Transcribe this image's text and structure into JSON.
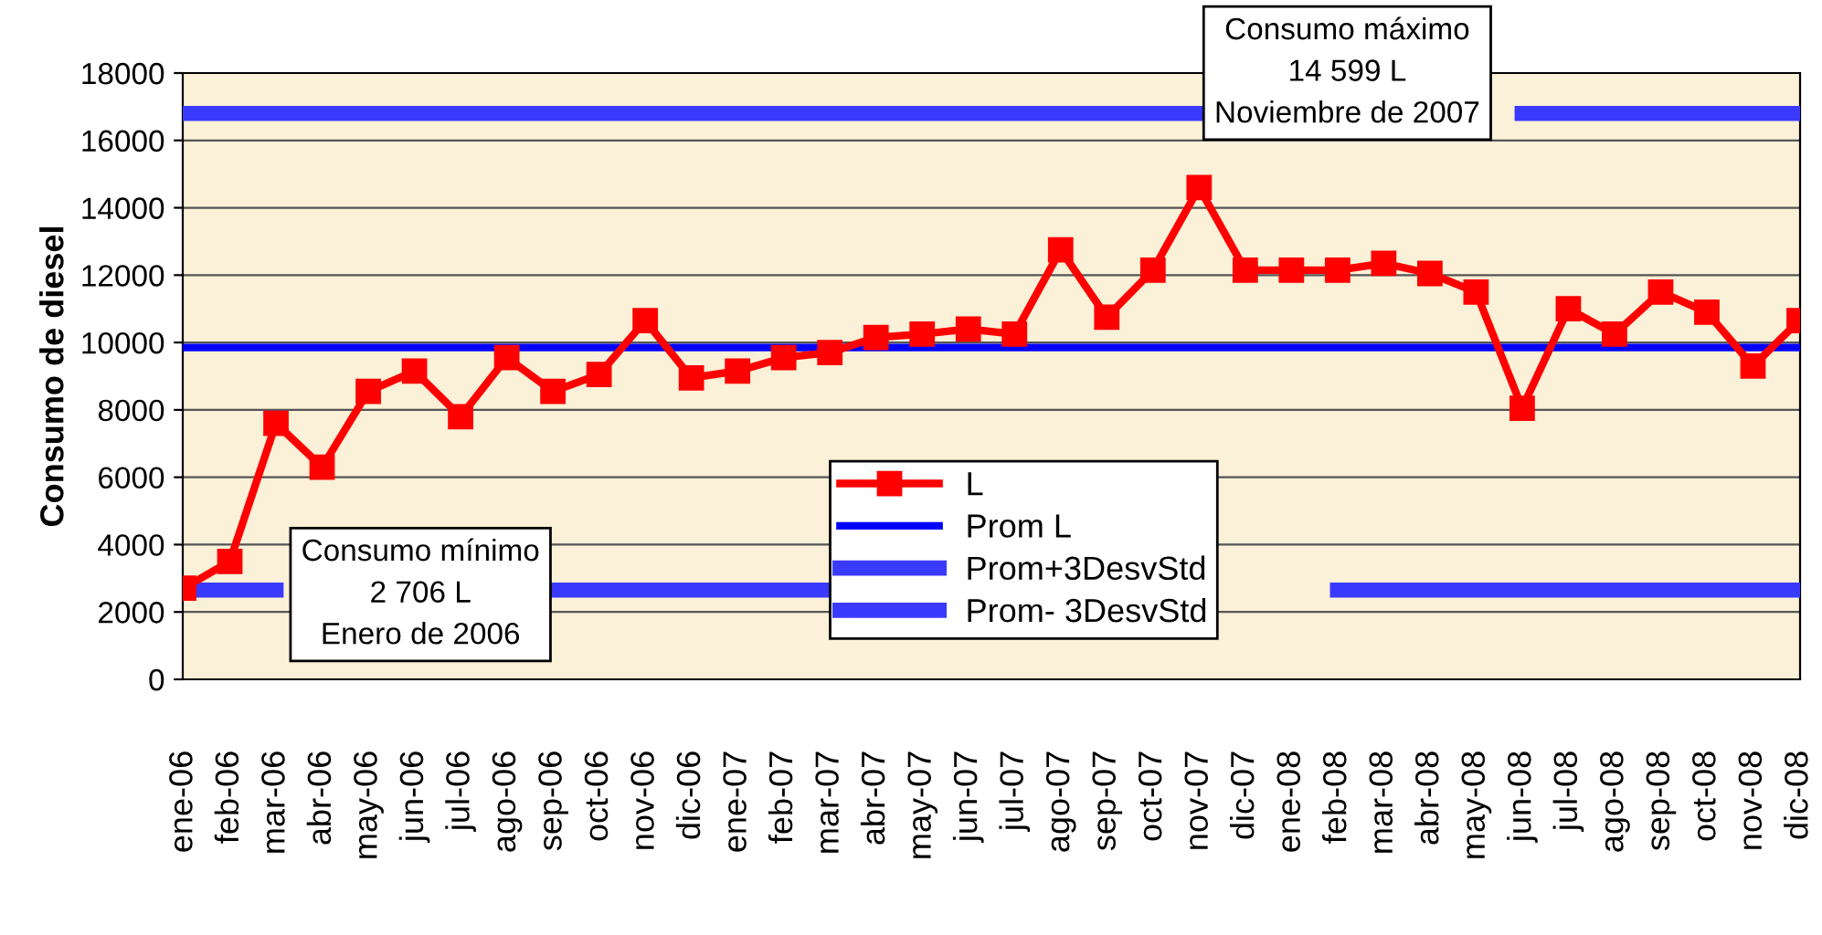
{
  "chart_data": {
    "type": "line",
    "ylabel": "Consumo de diesel",
    "categories": [
      "ene-06",
      "feb-06",
      "mar-06",
      "abr-06",
      "may-06",
      "jun-06",
      "jul-06",
      "ago-06",
      "sep-06",
      "oct-06",
      "nov-06",
      "dic-06",
      "ene-07",
      "feb-07",
      "mar-07",
      "abr-07",
      "may-07",
      "jun-07",
      "jul-07",
      "ago-07",
      "sep-07",
      "oct-07",
      "nov-07",
      "dic-07",
      "ene-08",
      "feb-08",
      "mar-08",
      "abr-08",
      "may-08",
      "jun-08",
      "jul-08",
      "ago-08",
      "sep-08",
      "oct-08",
      "nov-08",
      "dic-08"
    ],
    "series": [
      {
        "name": "L",
        "color": "#ff0000",
        "marker": "square",
        "values": [
          2706,
          3500,
          7600,
          6300,
          8550,
          9150,
          7800,
          9550,
          8550,
          9050,
          10650,
          8950,
          9150,
          9550,
          9700,
          10150,
          10250,
          10400,
          10250,
          12750,
          10750,
          12150,
          14599,
          12150,
          12150,
          12150,
          12350,
          12050,
          11500,
          8050,
          11000,
          10250,
          11500,
          10900,
          9300,
          10650
        ]
      },
      {
        "name": "Prom L",
        "color": "#0000ff",
        "values": [
          9850,
          9850,
          9850,
          9850,
          9850,
          9850,
          9850,
          9850,
          9850,
          9850,
          9850,
          9850,
          9850,
          9850,
          9850,
          9850,
          9850,
          9850,
          9850,
          9850,
          9850,
          9850,
          9850,
          9850,
          9850,
          9850,
          9850,
          9850,
          9850,
          9850,
          9850,
          9850,
          9850,
          9850,
          9850,
          9850
        ]
      },
      {
        "name": "Prom+3DesvStd",
        "color": "#3a3aff",
        "values": [
          16800,
          16800,
          16800,
          16800,
          16800,
          16800,
          16800,
          16800,
          16800,
          16800,
          16800,
          16800,
          16800,
          16800,
          16800,
          16800,
          16800,
          16800,
          16800,
          16800,
          16800,
          16800,
          16800,
          null,
          null,
          null,
          null,
          null,
          null,
          16800,
          16800,
          16800,
          16800,
          16800,
          16800,
          16800
        ]
      },
      {
        "name": "Prom- 3DesvStd",
        "color": "#3a3aff",
        "values": [
          2650,
          2650,
          2650,
          null,
          null,
          null,
          null,
          null,
          2650,
          2650,
          2650,
          2650,
          2650,
          2650,
          2650,
          null,
          null,
          null,
          null,
          null,
          null,
          null,
          null,
          null,
          null,
          2650,
          2650,
          2650,
          2650,
          2650,
          2650,
          2650,
          2650,
          2650,
          2650,
          2650
        ]
      }
    ],
    "ylim": [
      0,
      18000
    ],
    "yticks": [
      0,
      2000,
      4000,
      6000,
      8000,
      10000,
      12000,
      14000,
      16000,
      18000
    ],
    "grid": "y",
    "legend": "bottom",
    "annotations": [
      "Consumo mínimo\n2 706 L\nEnero de 2006",
      "Consumo máximo\n14 599 L\nNoviembre de 2007"
    ]
  }
}
